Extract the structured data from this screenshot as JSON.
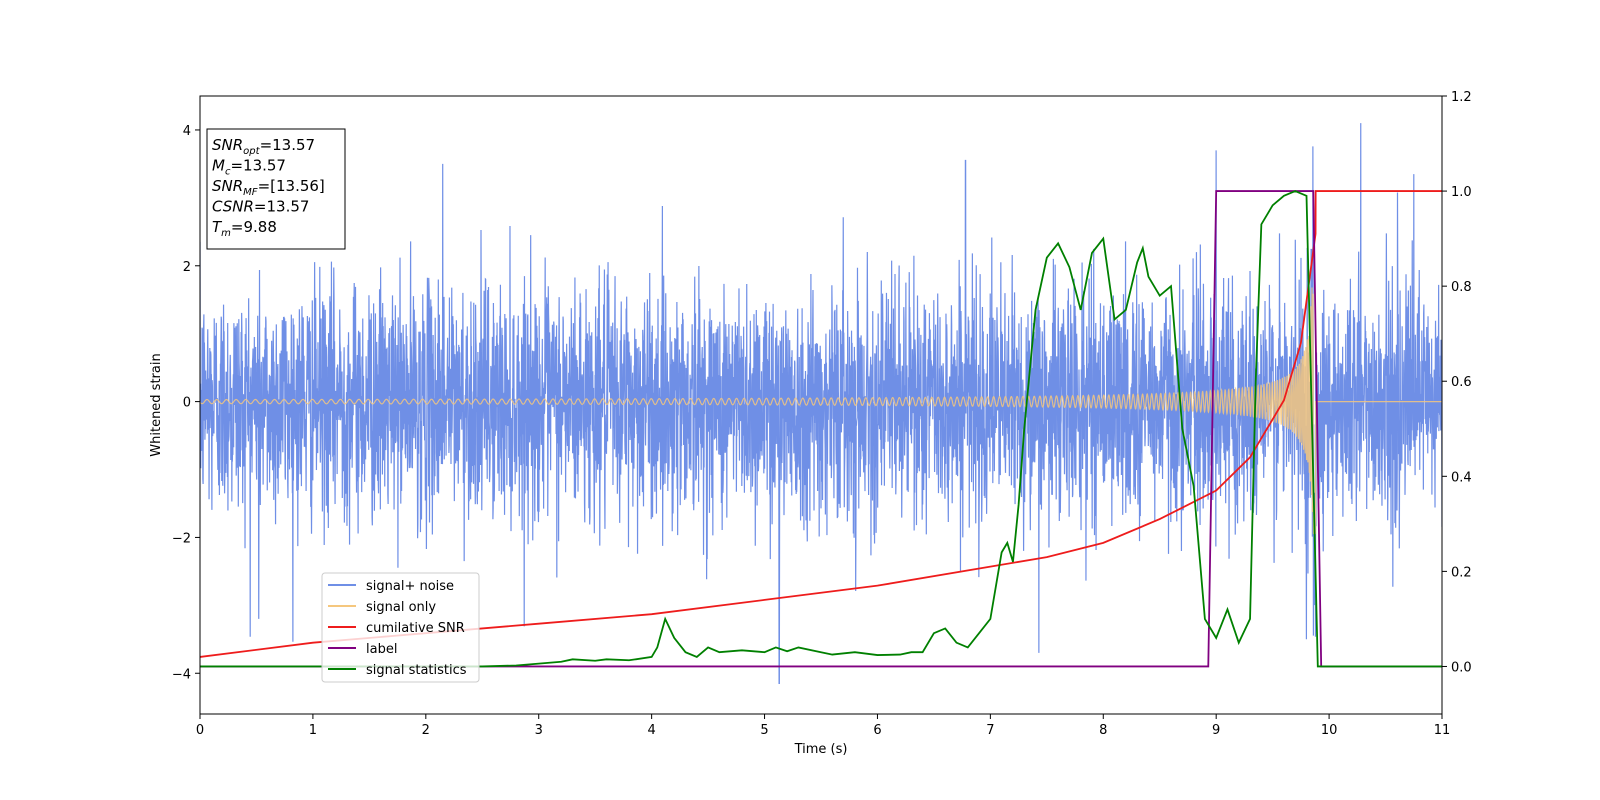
{
  "chart_data": {
    "type": "line",
    "xlabel": "Time (s)",
    "ylabel": "Whitened strain",
    "xlim": [
      0,
      11
    ],
    "ylim_left": [
      -4.6,
      4.5
    ],
    "ylim_right": [
      -0.1,
      1.2
    ],
    "x_ticks": [
      0,
      1,
      2,
      3,
      4,
      5,
      6,
      7,
      8,
      9,
      10,
      11
    ],
    "y_ticks_left": [
      -4,
      -2,
      0,
      2,
      4
    ],
    "y_ticks_right": [
      0.0,
      0.2,
      0.4,
      0.6,
      0.8,
      1.0,
      1.2
    ],
    "grid": false,
    "legend_position": "lower-left",
    "info_box": [
      {
        "base": "SNR",
        "sub": "opt",
        "value": "=13.57"
      },
      {
        "base": "M",
        "sub": "c",
        "value": "=13.57"
      },
      {
        "base": "SNR",
        "sub": "MF",
        "value": "=[13.56]"
      },
      {
        "base": "CSNR",
        "sub": "",
        "value": "=13.57"
      },
      {
        "base": "T",
        "sub": "m",
        "value": "=9.88"
      }
    ],
    "series": [
      {
        "name": "signal+ noise",
        "axis": "left",
        "color": "#6f8fe6",
        "description_values": {
          "noise_sigma": 0.85,
          "spikes": [
            [
              0.52,
              -3.2
            ],
            [
              2.15,
              3.5
            ],
            [
              5.13,
              -4.15
            ],
            [
              6.78,
              3.55
            ],
            [
              7.43,
              -3.7
            ],
            [
              9.0,
              3.7
            ],
            [
              9.8,
              -3.5
            ],
            [
              10.28,
              4.1
            ],
            [
              10.75,
              3.35
            ]
          ]
        }
      },
      {
        "name": "signal only",
        "axis": "left",
        "color": "#f5c77e",
        "chirp": {
          "start": 0,
          "end": 9.88,
          "amp_start": 0.03,
          "amp_end": 3.1
        }
      },
      {
        "name": "cumilative SNR",
        "axis": "right",
        "color": "#ee1c1c",
        "x": [
          0,
          1,
          2,
          3,
          4,
          5,
          6,
          7,
          7.5,
          8,
          8.5,
          9,
          9.3,
          9.6,
          9.75,
          9.88,
          9.881,
          11
        ],
        "y": [
          0.02,
          0.05,
          0.07,
          0.09,
          0.11,
          0.14,
          0.17,
          0.21,
          0.23,
          0.26,
          0.31,
          0.37,
          0.44,
          0.56,
          0.68,
          0.91,
          1.0,
          1.0
        ]
      },
      {
        "name": "label",
        "axis": "right",
        "color": "#800080",
        "x": [
          0,
          8.93,
          9.0,
          9.86,
          9.93,
          11
        ],
        "y": [
          0,
          0,
          1,
          1,
          0,
          0
        ]
      },
      {
        "name": "signal statistics",
        "axis": "right",
        "color": "#008000",
        "x": [
          0,
          1,
          2,
          2.5,
          2.8,
          3.0,
          3.2,
          3.3,
          3.5,
          3.6,
          3.8,
          4.0,
          4.05,
          4.12,
          4.2,
          4.3,
          4.4,
          4.5,
          4.6,
          4.8,
          5.0,
          5.1,
          5.2,
          5.3,
          5.5,
          5.6,
          5.8,
          6.0,
          6.2,
          6.3,
          6.4,
          6.5,
          6.6,
          6.7,
          6.8,
          6.9,
          7.0,
          7.1,
          7.15,
          7.2,
          7.25,
          7.3,
          7.4,
          7.5,
          7.6,
          7.7,
          7.8,
          7.9,
          8.0,
          8.1,
          8.2,
          8.3,
          8.35,
          8.4,
          8.5,
          8.6,
          8.7,
          8.8,
          8.9,
          9.0,
          9.1,
          9.2,
          9.3,
          9.35,
          9.4,
          9.5,
          9.6,
          9.7,
          9.8,
          9.9,
          10.0,
          11
        ],
        "y": [
          0,
          0,
          0,
          0,
          0.002,
          0.006,
          0.01,
          0.015,
          0.012,
          0.015,
          0.013,
          0.02,
          0.04,
          0.1,
          0.06,
          0.03,
          0.02,
          0.04,
          0.03,
          0.034,
          0.03,
          0.04,
          0.032,
          0.04,
          0.03,
          0.025,
          0.03,
          0.024,
          0.025,
          0.03,
          0.03,
          0.07,
          0.08,
          0.05,
          0.04,
          0.07,
          0.1,
          0.24,
          0.26,
          0.22,
          0.34,
          0.5,
          0.75,
          0.86,
          0.89,
          0.84,
          0.75,
          0.87,
          0.9,
          0.73,
          0.75,
          0.85,
          0.88,
          0.82,
          0.78,
          0.8,
          0.5,
          0.38,
          0.1,
          0.06,
          0.12,
          0.05,
          0.1,
          0.6,
          0.93,
          0.97,
          0.99,
          1.0,
          0.99,
          0.0,
          0.0,
          0.0
        ]
      }
    ]
  }
}
